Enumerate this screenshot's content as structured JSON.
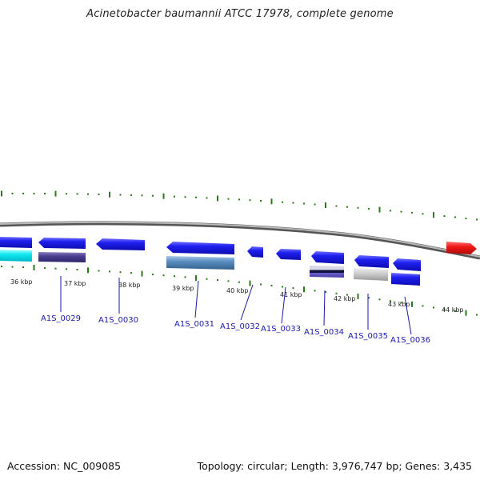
{
  "title": "Acinetobacter baumannii ATCC 17978, complete genome",
  "footer": {
    "accession": "Accession: NC_009085",
    "summary": "Topology: circular; Length: 3,976,747 bp; Genes: 3,435"
  },
  "colors": {
    "backbone": "#8a8a8a",
    "tick": "#2a7a1a",
    "cds": "#1c1ce0",
    "highlight": "#e01818",
    "label": "#1a1aa8"
  },
  "scale_labels": [
    "36 kbp",
    "37 kbp",
    "38 kbp",
    "39 kbp",
    "40 kbp",
    "41 kbp",
    "42 kbp",
    "43 kbp",
    "44 kbp"
  ],
  "gene_labels": [
    "A1S_0029",
    "A1S_0030",
    "A1S_0031",
    "A1S_0032",
    "A1S_0033",
    "A1S_0034",
    "A1S_0035",
    "A1S_0036"
  ]
}
